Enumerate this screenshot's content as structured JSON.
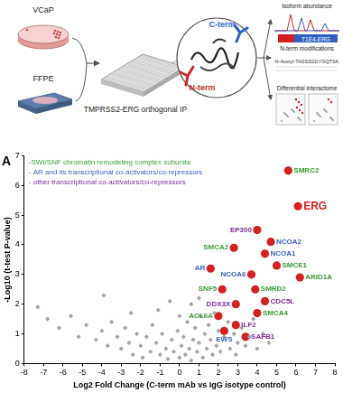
{
  "diagram": {
    "cells_label": "VCaP",
    "tissue_label": "FFPE",
    "plate_label": "TMPRSS2-ERG orthogonal IP",
    "c_term": "C-term",
    "n_term": "N-term",
    "outputs": [
      {
        "title": "Isoform abundance",
        "tag": "T1E4-ERG"
      },
      {
        "title": "N-term modifications",
        "tag": "N-Acetyl-TASSSSDYGQTSK"
      },
      {
        "title": "Differential interactome"
      }
    ]
  },
  "chart_data": {
    "type": "scatter",
    "panel_label": "A",
    "x_label": "Log2 Fold Change (C-term mAb vs IgG isotype control)",
    "y_label": "-Log10 (t-test P-value)",
    "xlim": [
      -8,
      8
    ],
    "xticks": [
      -8,
      -7,
      -6,
      -5,
      -4,
      -3,
      -2,
      -1,
      0,
      1,
      2,
      3,
      4,
      5,
      6,
      7,
      8
    ],
    "ylim": [
      0,
      7
    ],
    "yticks": [
      0,
      1,
      2,
      3,
      4,
      5,
      6,
      7
    ],
    "grid": false,
    "annotations": [
      {
        "text": "-SWI/SNF chromatin remodeling complex subunits",
        "color": "#3a9a3a"
      },
      {
        "text": "- AR and its transcriptional co-activators/co-repressors",
        "color": "#3a62c0"
      },
      {
        "text": "- other transcriptional co-activators/co-repressors",
        "color": "#7b2d9b"
      }
    ],
    "series": [
      {
        "color": "#a6a6a6",
        "marker": "diamond",
        "x": [
          -7.3,
          -6.8,
          -6.2,
          -5.6,
          -5.2,
          -4.8,
          -4.3,
          -4.0,
          -3.7,
          -3.5,
          -3.2,
          -3.0,
          -2.8,
          -2.6,
          -2.4,
          -2.2,
          -2.0,
          -1.9,
          -1.7,
          -1.5,
          -1.4,
          -1.2,
          -1.0,
          -0.9,
          -0.7,
          -0.6,
          -0.4,
          -0.3,
          -0.1,
          0.0,
          0.1,
          0.2,
          0.3,
          0.4,
          0.5,
          0.6,
          0.7,
          0.8,
          0.9,
          1.0,
          1.1,
          1.2,
          1.3,
          1.4,
          1.5,
          1.6,
          1.7,
          1.8,
          1.9,
          2.0,
          2.1,
          2.3,
          2.5,
          2.6,
          2.8,
          2.9,
          3.0,
          3.2,
          3.4,
          3.6,
          3.8,
          4.0,
          4.3,
          4.6,
          -1.1,
          0.0,
          -2.5,
          0.6,
          1.0,
          -0.5,
          -3.9
        ],
        "values": [
          1.9,
          1.5,
          1.2,
          1.6,
          0.9,
          1.3,
          0.8,
          1.1,
          0.6,
          1.4,
          0.9,
          0.5,
          1.2,
          0.7,
          0.3,
          1.0,
          0.6,
          0.2,
          0.9,
          0.4,
          1.3,
          0.7,
          0.3,
          1.0,
          0.5,
          0.15,
          0.8,
          0.4,
          1.1,
          0.2,
          0.6,
          0.9,
          0.3,
          1.4,
          0.5,
          0.1,
          0.8,
          1.2,
          0.4,
          0.7,
          1.6,
          0.2,
          1.0,
          0.5,
          1.3,
          0.8,
          0.3,
          1.7,
          0.6,
          1.1,
          0.4,
          0.9,
          1.4,
          0.5,
          1.0,
          0.3,
          0.7,
          1.2,
          0.6,
          0.9,
          1.5,
          0.5,
          1.0,
          0.7,
          1.8,
          1.6,
          1.7,
          2.0,
          2.2,
          2.1,
          2.3
        ]
      },
      {
        "color": "#d42020",
        "marker": "circle",
        "x": [
          6.1,
          5.6,
          4.0,
          4.7,
          4.4,
          5.0,
          6.2,
          2.8,
          3.7,
          1.6,
          3.9,
          2.2,
          4.4,
          2.9,
          4.0,
          2.0,
          2.9,
          3.4,
          2.3
        ],
        "values": [
          5.3,
          6.5,
          4.5,
          4.1,
          3.7,
          3.3,
          2.9,
          3.9,
          3.0,
          3.2,
          2.5,
          2.5,
          2.1,
          2.0,
          1.7,
          1.6,
          1.3,
          0.9,
          1.1
        ],
        "point_labels": [
          "ERG",
          "SMRC2",
          "EP300",
          "NCOA2",
          "NCOA1",
          "SMCE1",
          "ARID1A",
          "SMCA2",
          "NCOA6",
          "AR",
          "SMRD2",
          "SNF5",
          "CDC5L",
          "DDX3X",
          "SMCA4",
          "ACL6A",
          "ILF2",
          "SAFB1",
          "EWS"
        ],
        "label_colors": [
          "#d42020",
          "#3a9a3a",
          "#7b2d9b",
          "#3a62c0",
          "#3a62c0",
          "#3a9a3a",
          "#3a9a3a",
          "#3a9a3a",
          "#3a62c0",
          "#3a62c0",
          "#3a9a3a",
          "#3a9a3a",
          "#7b2d9b",
          "#7b2d9b",
          "#3a9a3a",
          "#3a9a3a",
          "#7b2d9b",
          "#7b2d9b",
          "#3a62c0"
        ]
      }
    ]
  }
}
